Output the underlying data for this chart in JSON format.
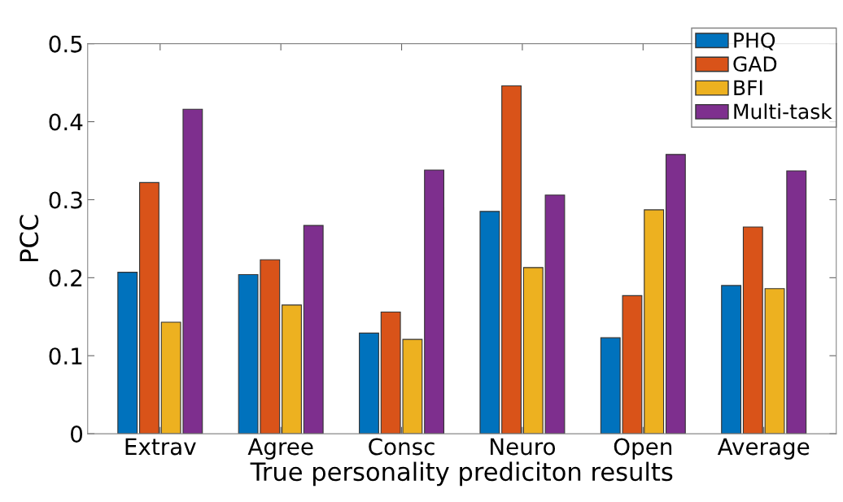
{
  "chart_data": {
    "type": "bar",
    "xlabel": "True personality prediciton results",
    "ylabel": "PCC",
    "categories": [
      "Extrav",
      "Agree",
      "Consc",
      "Neuro",
      "Open",
      "Average"
    ],
    "series": [
      {
        "name": "PHQ",
        "color": "#0072bd",
        "values": [
          0.207,
          0.204,
          0.129,
          0.285,
          0.123,
          0.19
        ]
      },
      {
        "name": "GAD",
        "color": "#d95319",
        "values": [
          0.322,
          0.223,
          0.156,
          0.446,
          0.177,
          0.265
        ]
      },
      {
        "name": "BFI",
        "color": "#edb120",
        "values": [
          0.143,
          0.165,
          0.121,
          0.213,
          0.287,
          0.186
        ]
      },
      {
        "name": "Multi-task",
        "color": "#7e2f8e",
        "values": [
          0.416,
          0.267,
          0.338,
          0.306,
          0.358,
          0.337
        ]
      }
    ],
    "ylim": [
      0,
      0.5
    ],
    "yticks": [
      0,
      0.1,
      0.2,
      0.3,
      0.4,
      0.5
    ],
    "grid": false,
    "legend": "top right"
  }
}
